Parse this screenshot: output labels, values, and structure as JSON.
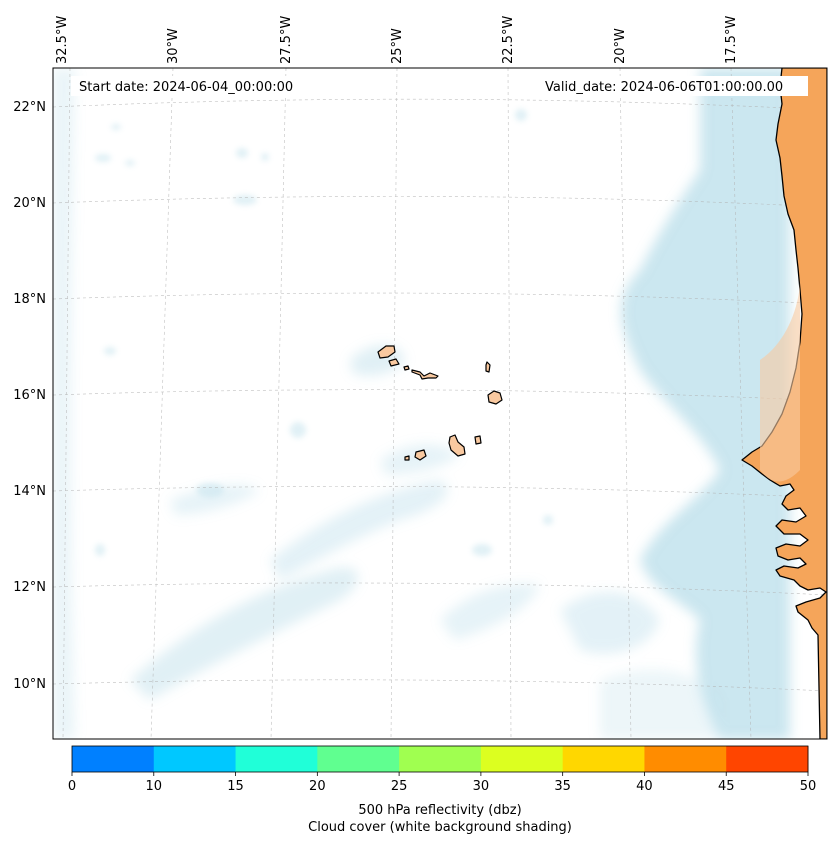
{
  "map": {
    "start_date_label": "Start date: 2024-06-04_00:00:00",
    "valid_date_label": "Valid_date: 2024-06-06T01:00:00.00",
    "lon_labels": [
      "32.5°W",
      "30°W",
      "27.5°W",
      "25°W",
      "22.5°W",
      "20°W",
      "17.5°W"
    ],
    "lat_labels": [
      "22°N",
      "20°N",
      "18°N",
      "16°N",
      "14°N",
      "12°N",
      "10°N"
    ],
    "land_color": "#f5a55a",
    "island_color": "#f9c9a0",
    "cloud_color": "#add8e6"
  },
  "colorbar": {
    "ticks": [
      "0",
      "10",
      "15",
      "20",
      "25",
      "30",
      "35",
      "40",
      "45",
      "50"
    ],
    "colors": [
      "#0080ff",
      "#00c8ff",
      "#20ffd8",
      "#60ff90",
      "#a0ff50",
      "#dcff20",
      "#ffd700",
      "#ff8c00",
      "#ff4500"
    ],
    "label_line1": "500 hPa reflectivity (dbz)",
    "label_line2": "Cloud cover (white background shading)"
  }
}
